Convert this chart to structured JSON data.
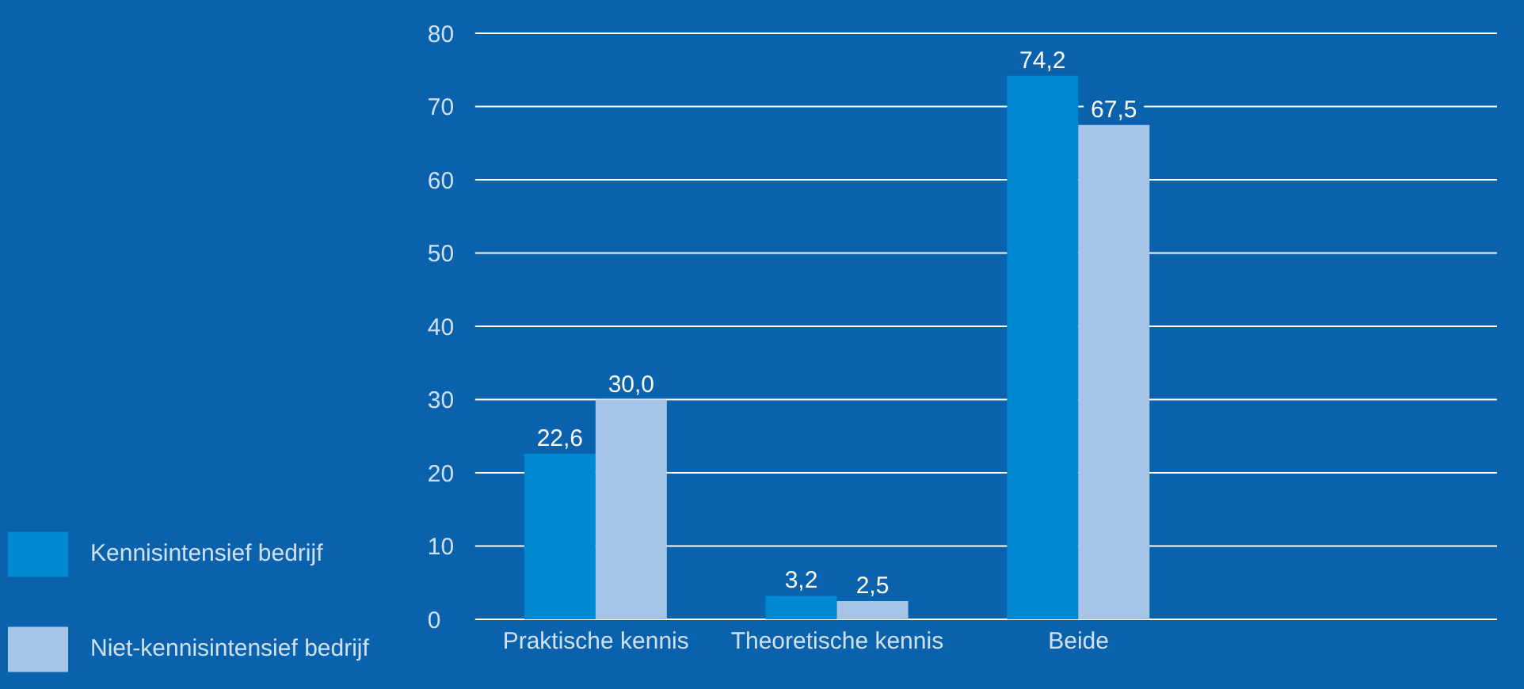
{
  "chart_data": {
    "type": "bar",
    "categories": [
      "Praktische kennis",
      "Theoretische kennis",
      "Beide"
    ],
    "series": [
      {
        "name": "Kennisintensief bedrijf",
        "color": "#0088d1",
        "values": [
          22.6,
          3.2,
          74.2
        ],
        "value_labels": [
          "22,6",
          "3,2",
          "74,2"
        ]
      },
      {
        "name": "Niet-kennisintensief bedrijf",
        "color": "#a6c4e8",
        "values": [
          30.0,
          2.5,
          67.5
        ],
        "value_labels": [
          "30,0",
          "2,5",
          "67,5"
        ]
      }
    ],
    "ylim": [
      0,
      80
    ],
    "yticks": [
      0,
      10,
      20,
      30,
      40,
      50,
      60,
      70,
      80
    ],
    "grid": "y",
    "legend": "bottom left"
  }
}
